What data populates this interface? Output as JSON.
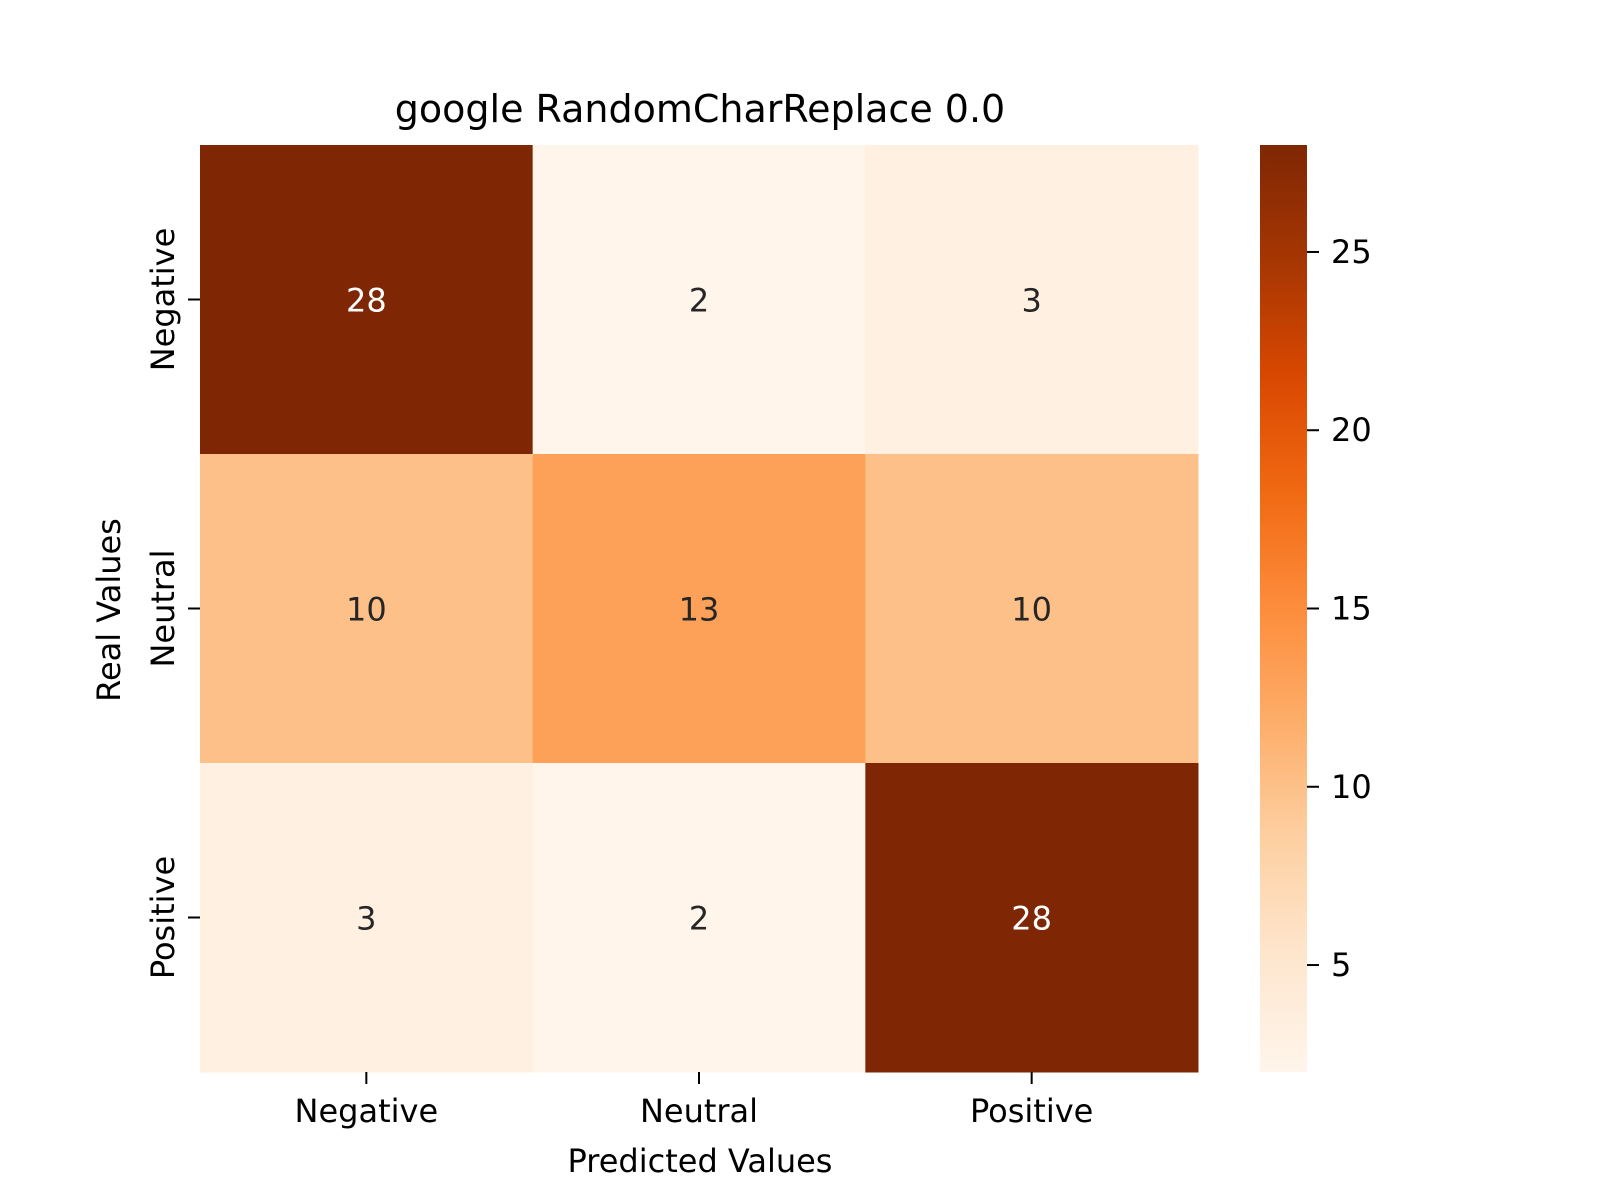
{
  "chart_data": {
    "type": "heatmap",
    "title": "google RandomCharReplace 0.0",
    "xlabel": "Predicted Values",
    "ylabel": "Real Values",
    "x_categories": [
      "Negative",
      "Neutral",
      "Positive"
    ],
    "y_categories": [
      "Negative",
      "Neutral",
      "Positive"
    ],
    "values": [
      [
        28,
        2,
        3
      ],
      [
        10,
        13,
        10
      ],
      [
        3,
        2,
        28
      ]
    ],
    "colormap": "Oranges",
    "colorbar": {
      "vmin": 2,
      "vmax": 28,
      "ticks": [
        5,
        10,
        15,
        20,
        25
      ]
    },
    "annotate_cells": true
  }
}
